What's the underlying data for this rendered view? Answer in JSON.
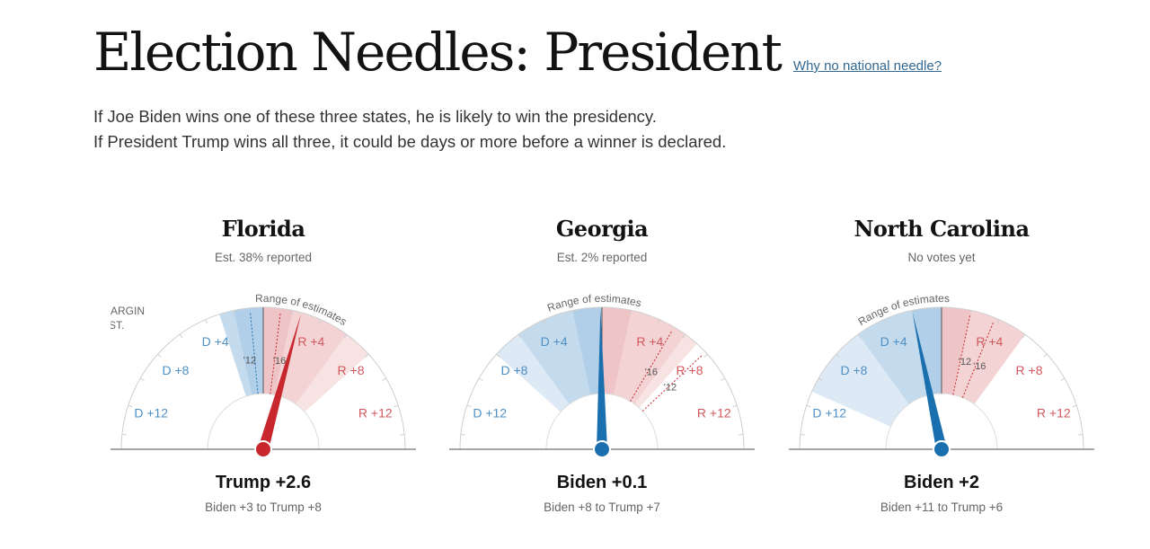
{
  "header": {
    "title": "Election Needles: President",
    "link": "Why no national needle?"
  },
  "intro": {
    "line1": "If Joe Biden wins one of these three states, he is likely to win the presidency.",
    "line2": "If President Trump wins all three, it could be days or more before a winner is declared."
  },
  "labels": {
    "range_of_estimates": "Range of estimates",
    "margin_est_1": "MARGIN",
    "margin_est_2": "EST.",
    "ticks": {
      "d12": "D +12",
      "d8": "D +8",
      "d4": "D +4",
      "r4": "R +4",
      "r8": "R +8",
      "r12": "R +12"
    },
    "y12": "'12",
    "y16": "'16"
  },
  "colors": {
    "dem": "#1a6faf",
    "rep": "#c7272d",
    "dem_text": "#4e8fc4",
    "rep_text": "#d1585d"
  },
  "states": [
    {
      "name": "Florida",
      "status": "Est. 38% reported",
      "result": "Trump +2.6",
      "range": "Biden +3 to Trump +8",
      "margin": 2.6,
      "low": -3,
      "high": 8,
      "prior_2012": -0.9,
      "prior_2016": 1.2
    },
    {
      "name": "Georgia",
      "status": "Est. 2% reported",
      "result": "Biden +0.1",
      "range": "Biden +8 to Trump +7",
      "margin": -0.1,
      "low": -8,
      "high": 7,
      "prior_2012": 7.8,
      "prior_2016": 5.1
    },
    {
      "name": "North Carolina",
      "status": "No votes yet",
      "result": "Biden +2",
      "range": "Biden +11 to Trump +6",
      "margin": -2,
      "low": -11,
      "high": 6,
      "prior_2012": 2.0,
      "prior_2016": 3.7
    }
  ]
}
